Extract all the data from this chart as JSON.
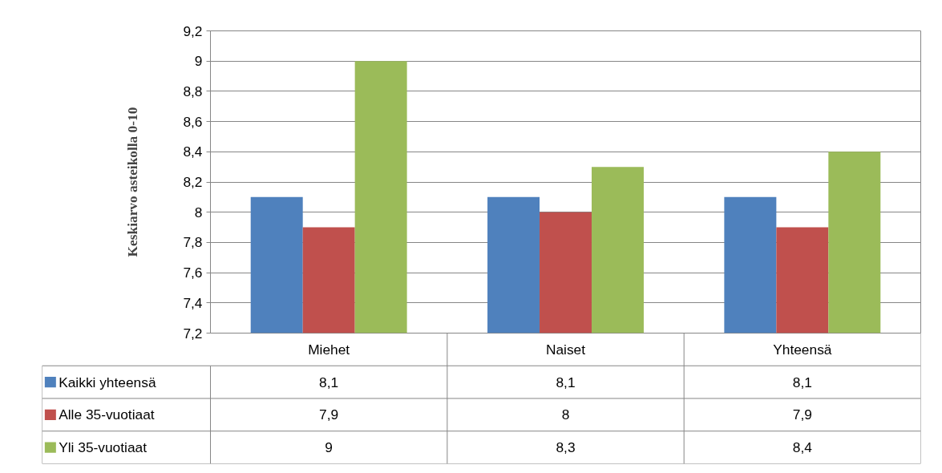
{
  "chart_data": {
    "type": "bar",
    "ylabel": "Keskiarvo asteikolla 0-10",
    "categories": [
      "Miehet",
      "Naiset",
      "Yhteensä"
    ],
    "series": [
      {
        "name": "Kaikki yhteensä",
        "color": "#4f81bd",
        "values": [
          8.1,
          8.1,
          8.1
        ],
        "value_labels": [
          "8,1",
          "8,1",
          "8,1"
        ]
      },
      {
        "name": "Alle 35-vuotiaat",
        "color": "#c0504d",
        "values": [
          7.9,
          8,
          7.9
        ],
        "value_labels": [
          "7,9",
          "8",
          "7,9"
        ]
      },
      {
        "name": "Yli 35-vuotiaat",
        "color": "#9bbb59",
        "values": [
          9,
          8.3,
          8.4
        ],
        "value_labels": [
          "9",
          "8,3",
          "8,4"
        ]
      }
    ],
    "ylim": [
      7.2,
      9.2
    ],
    "yticks": [
      {
        "value": 7.2,
        "label": "7,2"
      },
      {
        "value": 7.4,
        "label": "7,4"
      },
      {
        "value": 7.6,
        "label": "7,6"
      },
      {
        "value": 7.8,
        "label": "7,8"
      },
      {
        "value": 8,
        "label": "8"
      },
      {
        "value": 8.2,
        "label": "8,2"
      },
      {
        "value": 8.4,
        "label": "8,4"
      },
      {
        "value": 8.6,
        "label": "8,6"
      },
      {
        "value": 8.8,
        "label": "8,8"
      },
      {
        "value": 9,
        "label": "9"
      },
      {
        "value": 9.2,
        "label": "9,2"
      }
    ],
    "grid": "y",
    "legend": "bottom"
  }
}
